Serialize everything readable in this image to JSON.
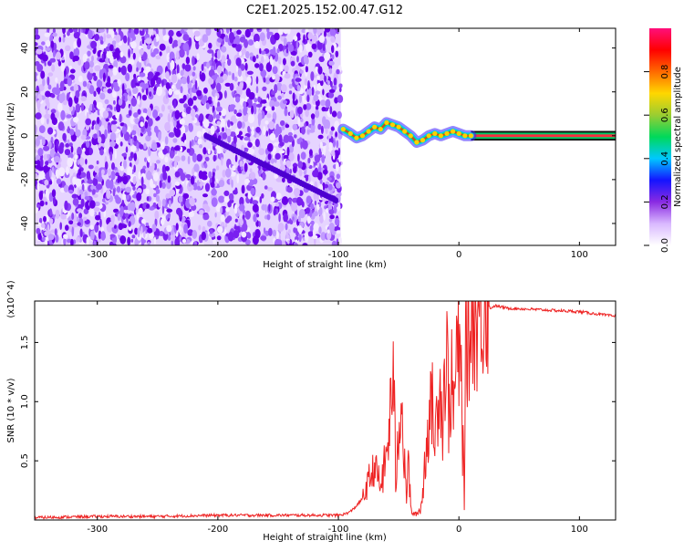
{
  "title": "C2E1.2025.152.00.47.G12",
  "chart_data": [
    {
      "type": "heatmap",
      "xlabel": "Height of straight line (km)",
      "ylabel": "Frequency (Hz)",
      "xlim": [
        -352,
        130
      ],
      "ylim": [
        -50,
        49
      ],
      "xticks": [
        -300,
        -200,
        -100,
        0,
        100
      ],
      "yticks": [
        -40,
        -20,
        0,
        20,
        40
      ],
      "colorbar": {
        "label": "Normalized spectral amplitude",
        "range": [
          0,
          1
        ],
        "ticks": [
          0.0,
          0.2,
          0.4,
          0.6,
          0.8
        ],
        "tick_labels": [
          "0.0",
          "0.2",
          "0.4",
          "0.6",
          "0.8"
        ],
        "colormap": [
          "#ffffff",
          "#d9b8ff",
          "#8a2be2",
          "#1414ff",
          "#00c8ff",
          "#00d95a",
          "#9acd32",
          "#ffd700",
          "#ff6a00",
          "#ff0000",
          "#ff0f7b"
        ]
      },
      "regions": [
        {
          "name": "broadband noise",
          "x_range": [
            -352,
            -98
          ],
          "freq_range": [
            -50,
            49
          ]
        },
        {
          "name": "carrier tone",
          "x_range": [
            -98,
            130
          ],
          "freq_range": [
            -3,
            3
          ]
        }
      ],
      "carrier_track": {
        "x": [
          -96,
          -90,
          -85,
          -80,
          -75,
          -70,
          -65,
          -60,
          -55,
          -50,
          -45,
          -40,
          -35,
          -30,
          -25,
          -20,
          -15,
          -10,
          -5,
          0,
          5,
          10,
          130
        ],
        "freq": [
          3,
          1,
          -1,
          0,
          2,
          4,
          3,
          6,
          5,
          4,
          2,
          0,
          -3,
          -2,
          0,
          1,
          0,
          1,
          2,
          1,
          0,
          0,
          0
        ]
      }
    },
    {
      "type": "line",
      "xlabel": "Height of straight line (km)",
      "ylabel": "SNR (10 * v/v)",
      "y_multiplier": "(x10^4)",
      "xlim": [
        -352,
        130
      ],
      "ylim": [
        0,
        1.85
      ],
      "xticks": [
        -300,
        -200,
        -100,
        0,
        100
      ],
      "yticks": [
        0.5,
        1.0,
        1.5
      ],
      "ytick_labels": [
        "0.5",
        "1.0",
        "1.5"
      ],
      "color": "#ee2222",
      "series": [
        {
          "x": [
            -352,
            -300,
            -250,
            -200,
            -150,
            -100,
            -95,
            -90,
            -85,
            -80,
            -75,
            -70,
            -65,
            -60,
            -57,
            -55,
            -52,
            -50,
            -48,
            -46,
            -44,
            -42,
            -40,
            -38,
            -36,
            -34,
            -32,
            -30,
            -28,
            -26,
            -24,
            -22,
            -20,
            -18,
            -16,
            -14,
            -12,
            -10,
            -8,
            -6,
            -4,
            -2,
            0,
            2,
            4,
            6,
            8,
            10,
            12,
            14,
            16,
            18,
            20,
            22,
            24,
            26,
            28,
            30,
            40,
            60,
            80,
            100,
            130
          ],
          "y": [
            0.02,
            0.03,
            0.03,
            0.04,
            0.04,
            0.04,
            0.05,
            0.07,
            0.12,
            0.18,
            0.32,
            0.45,
            0.28,
            0.55,
            0.85,
            1.25,
            0.4,
            0.82,
            1.05,
            0.6,
            0.2,
            0.5,
            0.1,
            0.05,
            0.05,
            0.06,
            0.1,
            0.2,
            0.55,
            0.75,
            0.9,
            1.0,
            0.65,
            0.95,
            1.3,
            0.8,
            1.2,
            1.4,
            0.9,
            1.2,
            0.85,
            1.5,
            1.3,
            1.2,
            0.3,
            1.55,
            1.4,
            1.7,
            1.75,
            1.6,
            1.72,
            1.78,
            1.8,
            1.9,
            1.82,
            1.79,
            1.8,
            1.81,
            1.79,
            1.78,
            1.77,
            1.76,
            1.72
          ]
        }
      ]
    }
  ]
}
